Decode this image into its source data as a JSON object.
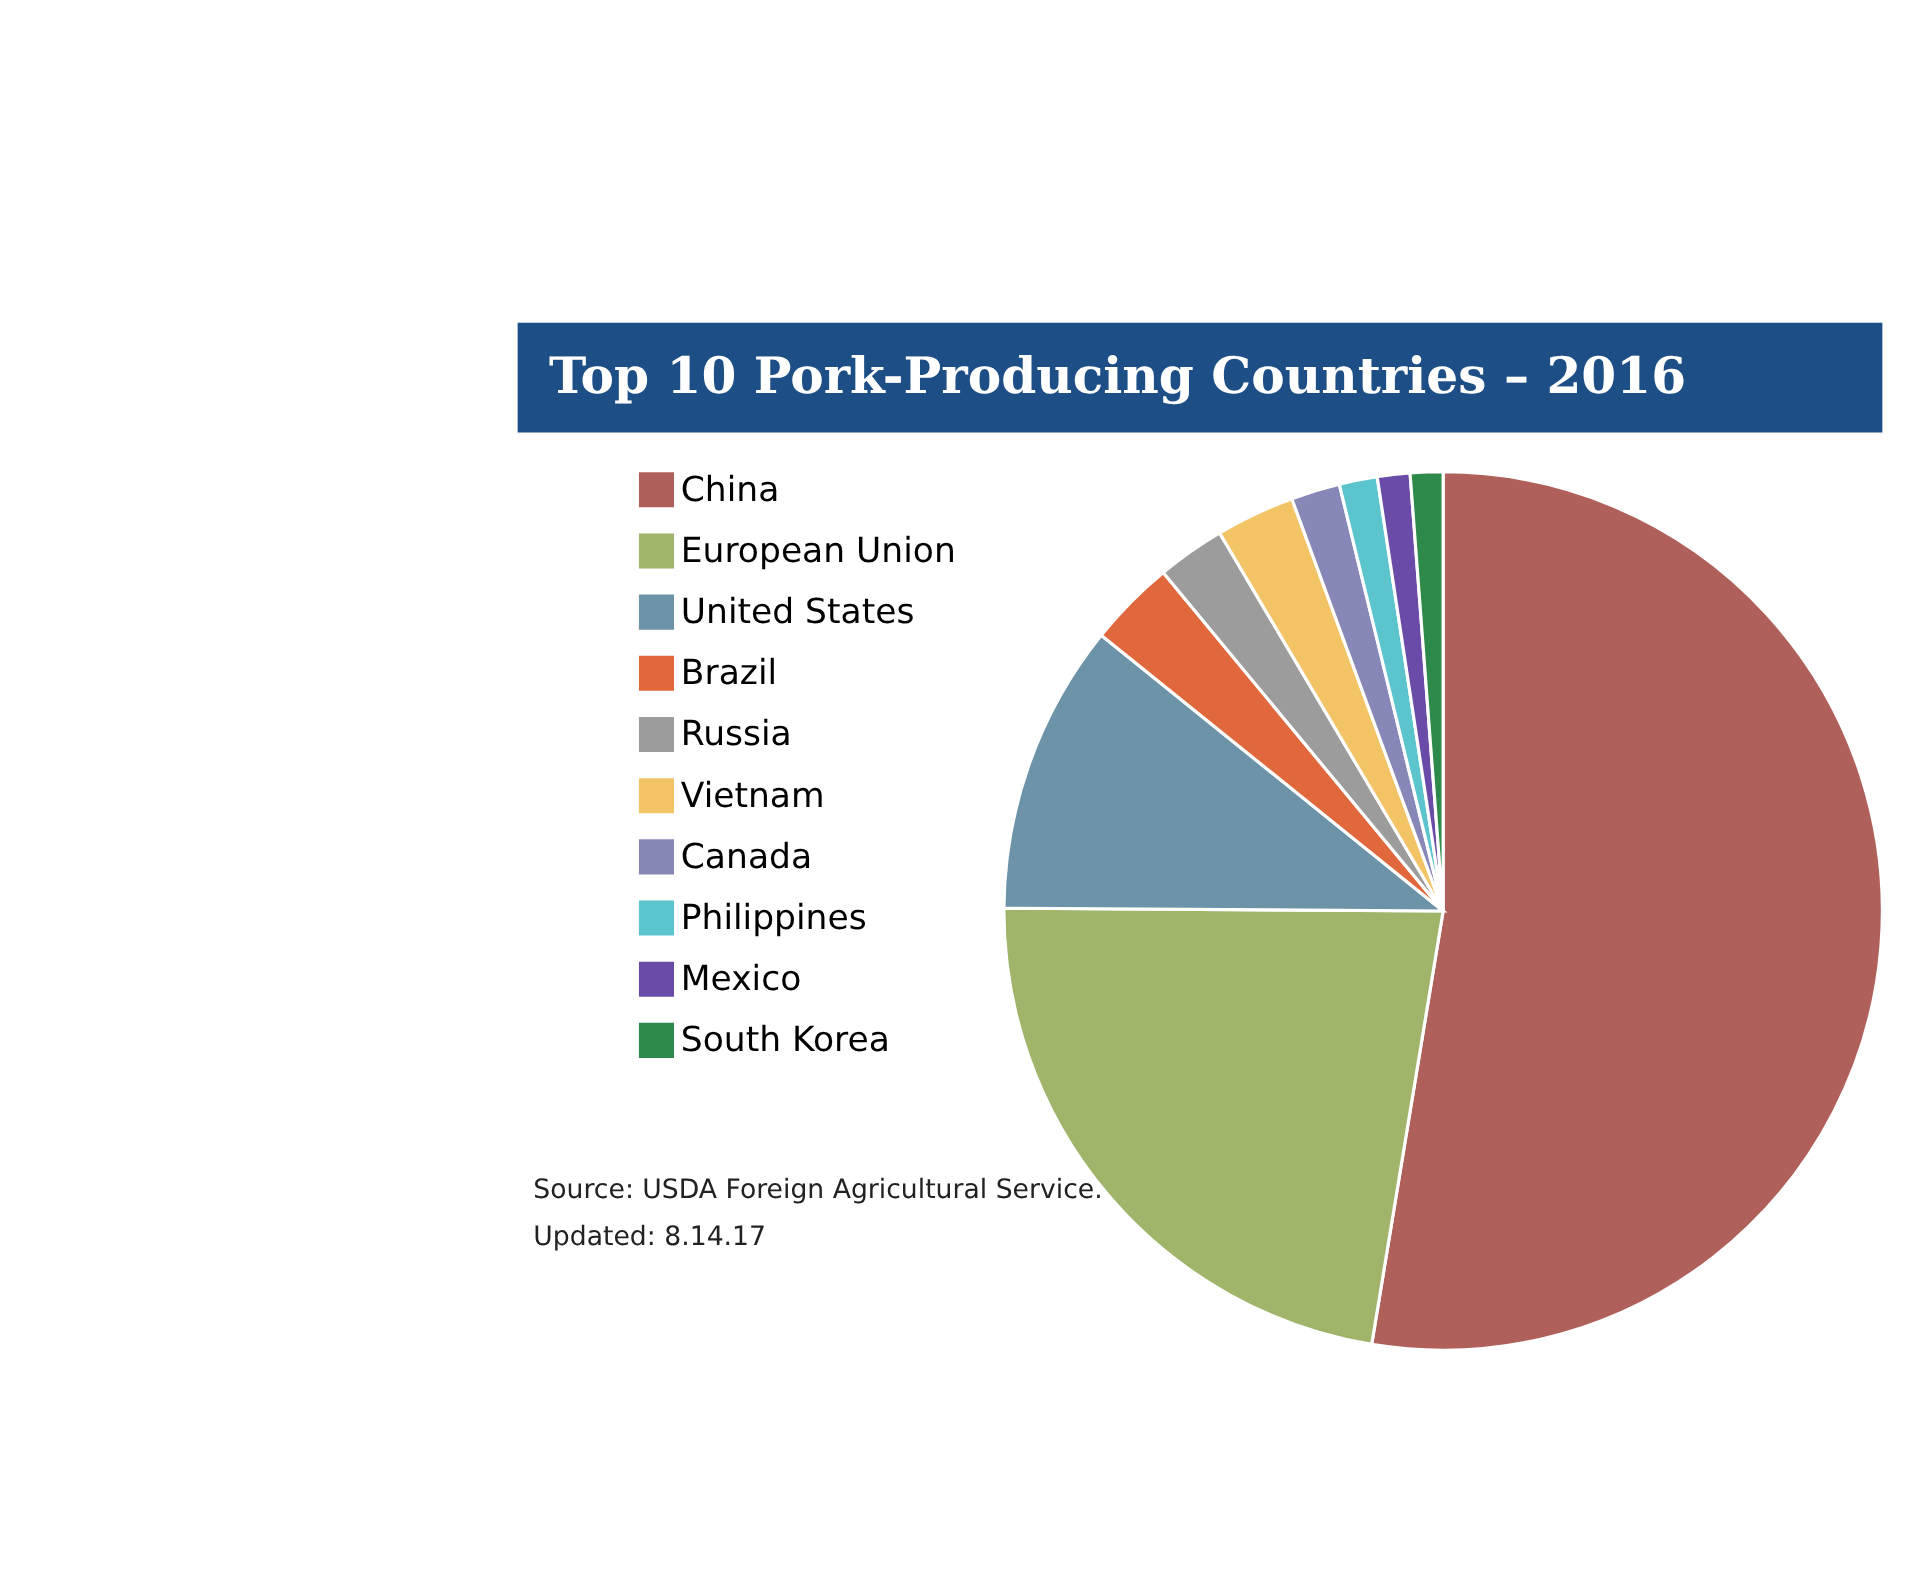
{
  "chart_data": {
    "type": "pie",
    "title": "Top 10 Pork-Producing Countries – 2016",
    "categories": [
      "China",
      "European Union",
      "United States",
      "Brazil",
      "Russia",
      "Vietnam",
      "Canada",
      "Philippines",
      "Mexico",
      "South Korea"
    ],
    "values": [
      52.6,
      22.5,
      10.7,
      3.2,
      2.5,
      2.9,
      1.8,
      1.4,
      1.2,
      1.2
    ],
    "colors": [
      "#b0605a",
      "#a0b46a",
      "#6c93a8",
      "#e0683c",
      "#9c9c9c",
      "#f2c466",
      "#8888b8",
      "#5cc4cc",
      "#6a4ca8",
      "#2e8a4a"
    ],
    "legend": "left",
    "annotations": [
      "Source: USDA Foreign Agricultural Service.",
      "Updated: 8.14.17"
    ]
  }
}
